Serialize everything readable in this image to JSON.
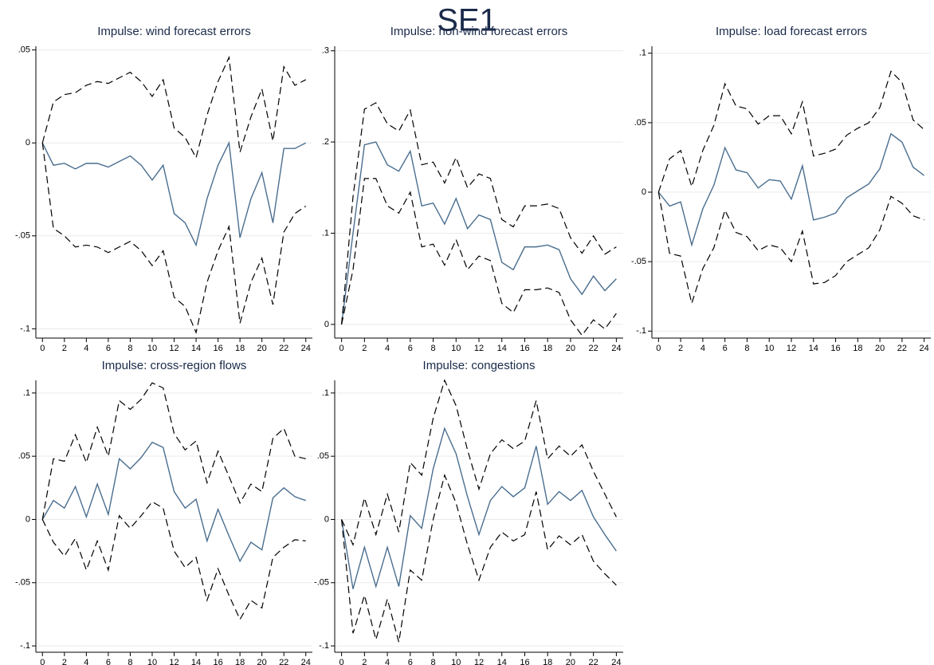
{
  "title": "SE1",
  "chart_data": [
    {
      "type": "line",
      "title": "Impulse: wind forecast errors",
      "x": [
        0,
        1,
        2,
        3,
        4,
        5,
        6,
        7,
        8,
        9,
        10,
        11,
        12,
        13,
        14,
        15,
        16,
        17,
        18,
        19,
        20,
        21,
        22,
        23,
        24
      ],
      "xlim": [
        -0.6,
        24.6
      ],
      "xticks": [
        0,
        2,
        4,
        6,
        8,
        10,
        12,
        14,
        16,
        18,
        20,
        22,
        24
      ],
      "ylim": [
        -0.105,
        0.052
      ],
      "yticks": [
        {
          "value": -0.1,
          "label": "-.1"
        },
        {
          "value": -0.05,
          "label": "-.05"
        },
        0,
        {
          "value": 0.05,
          "label": ".05"
        }
      ],
      "grid": true,
      "series": [
        {
          "color": "#4a6e8f",
          "dashed": false,
          "values": [
            0,
            -0.012,
            -0.011,
            -0.014,
            -0.011,
            -0.011,
            -0.013,
            -0.01,
            -0.007,
            -0.012,
            -0.02,
            -0.012,
            -0.038,
            -0.043,
            -0.055,
            -0.03,
            -0.012,
            0.0,
            -0.051,
            -0.03,
            -0.016,
            -0.043,
            -0.003,
            -0.003,
            0.0
          ]
        },
        {
          "color": "#000000",
          "dashed": true,
          "values": [
            0,
            0.022,
            0.026,
            0.027,
            0.031,
            0.033,
            0.032,
            0.035,
            0.038,
            0.033,
            0.025,
            0.034,
            0.008,
            0.003,
            -0.008,
            0.015,
            0.033,
            0.046,
            -0.005,
            0.014,
            0.029,
            0.001,
            0.041,
            0.031,
            0.034
          ]
        },
        {
          "color": "#000000",
          "dashed": true,
          "values": [
            0,
            -0.046,
            -0.05,
            -0.056,
            -0.055,
            -0.056,
            -0.059,
            -0.056,
            -0.053,
            -0.058,
            -0.066,
            -0.058,
            -0.083,
            -0.088,
            -0.102,
            -0.075,
            -0.058,
            -0.045,
            -0.097,
            -0.075,
            -0.062,
            -0.087,
            -0.048,
            -0.038,
            -0.034
          ]
        }
      ]
    },
    {
      "type": "line",
      "title": "Impulse: non-wind forecast errors",
      "x": [
        0,
        1,
        2,
        3,
        4,
        5,
        6,
        7,
        8,
        9,
        10,
        11,
        12,
        13,
        14,
        15,
        16,
        17,
        18,
        19,
        20,
        21,
        22,
        23,
        24
      ],
      "xlim": [
        -0.6,
        24.6
      ],
      "xticks": [
        0,
        2,
        4,
        6,
        8,
        10,
        12,
        14,
        16,
        18,
        20,
        22,
        24
      ],
      "ylim": [
        -0.015,
        0.305
      ],
      "yticks": [
        0,
        {
          "value": 0.1,
          "label": ".1"
        },
        {
          "value": 0.2,
          "label": ".2"
        },
        {
          "value": 0.3,
          "label": ".3"
        }
      ],
      "grid": true,
      "series": [
        {
          "color": "#4a6e8f",
          "dashed": false,
          "values": [
            0,
            0.1,
            0.197,
            0.2,
            0.175,
            0.168,
            0.19,
            0.13,
            0.133,
            0.11,
            0.138,
            0.105,
            0.12,
            0.115,
            0.068,
            0.06,
            0.085,
            0.085,
            0.087,
            0.082,
            0.05,
            0.033,
            0.053,
            0.037,
            0.05
          ]
        },
        {
          "color": "#000000",
          "dashed": true,
          "values": [
            0,
            0.14,
            0.236,
            0.243,
            0.22,
            0.212,
            0.235,
            0.175,
            0.178,
            0.155,
            0.183,
            0.15,
            0.165,
            0.16,
            0.115,
            0.107,
            0.13,
            0.13,
            0.132,
            0.127,
            0.095,
            0.078,
            0.097,
            0.077,
            0.085
          ]
        },
        {
          "color": "#000000",
          "dashed": true,
          "values": [
            0,
            0.06,
            0.16,
            0.16,
            0.13,
            0.122,
            0.145,
            0.085,
            0.088,
            0.065,
            0.093,
            0.06,
            0.075,
            0.07,
            0.023,
            0.013,
            0.038,
            0.038,
            0.04,
            0.035,
            0.005,
            -0.012,
            0.005,
            -0.005,
            0.012
          ]
        }
      ]
    },
    {
      "type": "line",
      "title": "Impulse: load forecast errors",
      "x": [
        0,
        1,
        2,
        3,
        4,
        5,
        6,
        7,
        8,
        9,
        10,
        11,
        12,
        13,
        14,
        15,
        16,
        17,
        18,
        19,
        20,
        21,
        22,
        23,
        24
      ],
      "xlim": [
        -0.6,
        24.6
      ],
      "xticks": [
        0,
        2,
        4,
        6,
        8,
        10,
        12,
        14,
        16,
        18,
        20,
        22,
        24
      ],
      "ylim": [
        -0.105,
        0.105
      ],
      "yticks": [
        {
          "value": -0.1,
          "label": "-.1"
        },
        {
          "value": -0.05,
          "label": "-.05"
        },
        0,
        {
          "value": 0.05,
          "label": ".05"
        },
        {
          "value": 0.1,
          "label": ".1"
        }
      ],
      "grid": true,
      "series": [
        {
          "color": "#4a6e8f",
          "dashed": false,
          "values": [
            0,
            -0.01,
            -0.007,
            -0.038,
            -0.012,
            0.005,
            0.032,
            0.016,
            0.014,
            0.003,
            0.009,
            0.008,
            -0.005,
            0.019,
            -0.02,
            -0.018,
            -0.015,
            -0.004,
            0.001,
            0.006,
            0.017,
            0.042,
            0.036,
            0.018,
            0.012
          ]
        },
        {
          "color": "#000000",
          "dashed": true,
          "values": [
            0,
            0.024,
            0.03,
            0.004,
            0.03,
            0.048,
            0.078,
            0.062,
            0.06,
            0.049,
            0.055,
            0.055,
            0.042,
            0.065,
            0.026,
            0.028,
            0.031,
            0.041,
            0.046,
            0.05,
            0.061,
            0.087,
            0.079,
            0.052,
            0.045
          ]
        },
        {
          "color": "#000000",
          "dashed": true,
          "values": [
            0,
            -0.044,
            -0.046,
            -0.08,
            -0.055,
            -0.04,
            -0.013,
            -0.029,
            -0.032,
            -0.042,
            -0.038,
            -0.04,
            -0.05,
            -0.028,
            -0.066,
            -0.065,
            -0.06,
            -0.05,
            -0.045,
            -0.04,
            -0.027,
            -0.003,
            -0.008,
            -0.017,
            -0.02
          ]
        }
      ]
    },
    {
      "type": "line",
      "title": "Impulse: cross-region flows",
      "x": [
        0,
        1,
        2,
        3,
        4,
        5,
        6,
        7,
        8,
        9,
        10,
        11,
        12,
        13,
        14,
        15,
        16,
        17,
        18,
        19,
        20,
        21,
        22,
        23,
        24
      ],
      "xlim": [
        -0.6,
        24.6
      ],
      "xticks": [
        0,
        2,
        4,
        6,
        8,
        10,
        12,
        14,
        16,
        18,
        20,
        22,
        24
      ],
      "ylim": [
        -0.105,
        0.11
      ],
      "yticks": [
        {
          "value": -0.1,
          "label": "-.1"
        },
        {
          "value": -0.05,
          "label": "-.05"
        },
        0,
        {
          "value": 0.05,
          "label": ".05"
        },
        {
          "value": 0.1,
          "label": ".1"
        }
      ],
      "grid": true,
      "series": [
        {
          "color": "#4a6e8f",
          "dashed": false,
          "values": [
            0,
            0.015,
            0.009,
            0.026,
            0.002,
            0.028,
            0.004,
            0.048,
            0.04,
            0.049,
            0.061,
            0.057,
            0.022,
            0.009,
            0.016,
            -0.017,
            0.008,
            -0.013,
            -0.033,
            -0.018,
            -0.024,
            0.017,
            0.025,
            0.018,
            0.015
          ]
        },
        {
          "color": "#000000",
          "dashed": true,
          "values": [
            0,
            0.048,
            0.046,
            0.067,
            0.045,
            0.073,
            0.05,
            0.094,
            0.087,
            0.095,
            0.108,
            0.104,
            0.068,
            0.055,
            0.062,
            0.029,
            0.054,
            0.034,
            0.013,
            0.028,
            0.022,
            0.064,
            0.072,
            0.05,
            0.048
          ]
        },
        {
          "color": "#000000",
          "dashed": true,
          "values": [
            0,
            -0.018,
            -0.029,
            -0.015,
            -0.04,
            -0.017,
            -0.04,
            0.003,
            -0.007,
            0.003,
            0.014,
            0.009,
            -0.025,
            -0.038,
            -0.03,
            -0.064,
            -0.039,
            -0.06,
            -0.079,
            -0.064,
            -0.07,
            -0.03,
            -0.022,
            -0.016,
            -0.017
          ]
        }
      ]
    },
    {
      "type": "line",
      "title": "Impulse: congestions",
      "x": [
        0,
        1,
        2,
        3,
        4,
        5,
        6,
        7,
        8,
        9,
        10,
        11,
        12,
        13,
        14,
        15,
        16,
        17,
        18,
        19,
        20,
        21,
        22,
        23,
        24
      ],
      "xlim": [
        -0.6,
        24.6
      ],
      "xticks": [
        0,
        2,
        4,
        6,
        8,
        10,
        12,
        14,
        16,
        18,
        20,
        22,
        24
      ],
      "ylim": [
        -0.105,
        0.11
      ],
      "yticks": [
        {
          "value": -0.1,
          "label": "-.1"
        },
        {
          "value": -0.05,
          "label": "-.05"
        },
        0,
        {
          "value": 0.05,
          "label": ".05"
        },
        {
          "value": 0.1,
          "label": ".1"
        }
      ],
      "grid": true,
      "series": [
        {
          "color": "#4a6e8f",
          "dashed": false,
          "values": [
            0,
            -0.055,
            -0.022,
            -0.053,
            -0.022,
            -0.053,
            0.003,
            -0.007,
            0.04,
            0.072,
            0.052,
            0.018,
            -0.012,
            0.015,
            0.026,
            0.018,
            0.025,
            0.058,
            0.012,
            0.022,
            0.015,
            0.023,
            0.002,
            -0.012,
            -0.025
          ]
        },
        {
          "color": "#000000",
          "dashed": true,
          "values": [
            0,
            -0.02,
            0.017,
            -0.012,
            0.02,
            -0.01,
            0.045,
            0.035,
            0.08,
            0.11,
            0.09,
            0.055,
            0.024,
            0.052,
            0.063,
            0.056,
            0.062,
            0.094,
            0.048,
            0.058,
            0.05,
            0.059,
            0.038,
            0.02,
            0.002
          ]
        },
        {
          "color": "#000000",
          "dashed": true,
          "values": [
            0,
            -0.09,
            -0.06,
            -0.095,
            -0.063,
            -0.097,
            -0.04,
            -0.048,
            0.0,
            0.035,
            0.013,
            -0.02,
            -0.048,
            -0.022,
            -0.01,
            -0.017,
            -0.012,
            0.022,
            -0.024,
            -0.013,
            -0.02,
            -0.012,
            -0.033,
            -0.043,
            -0.052
          ]
        }
      ]
    }
  ]
}
